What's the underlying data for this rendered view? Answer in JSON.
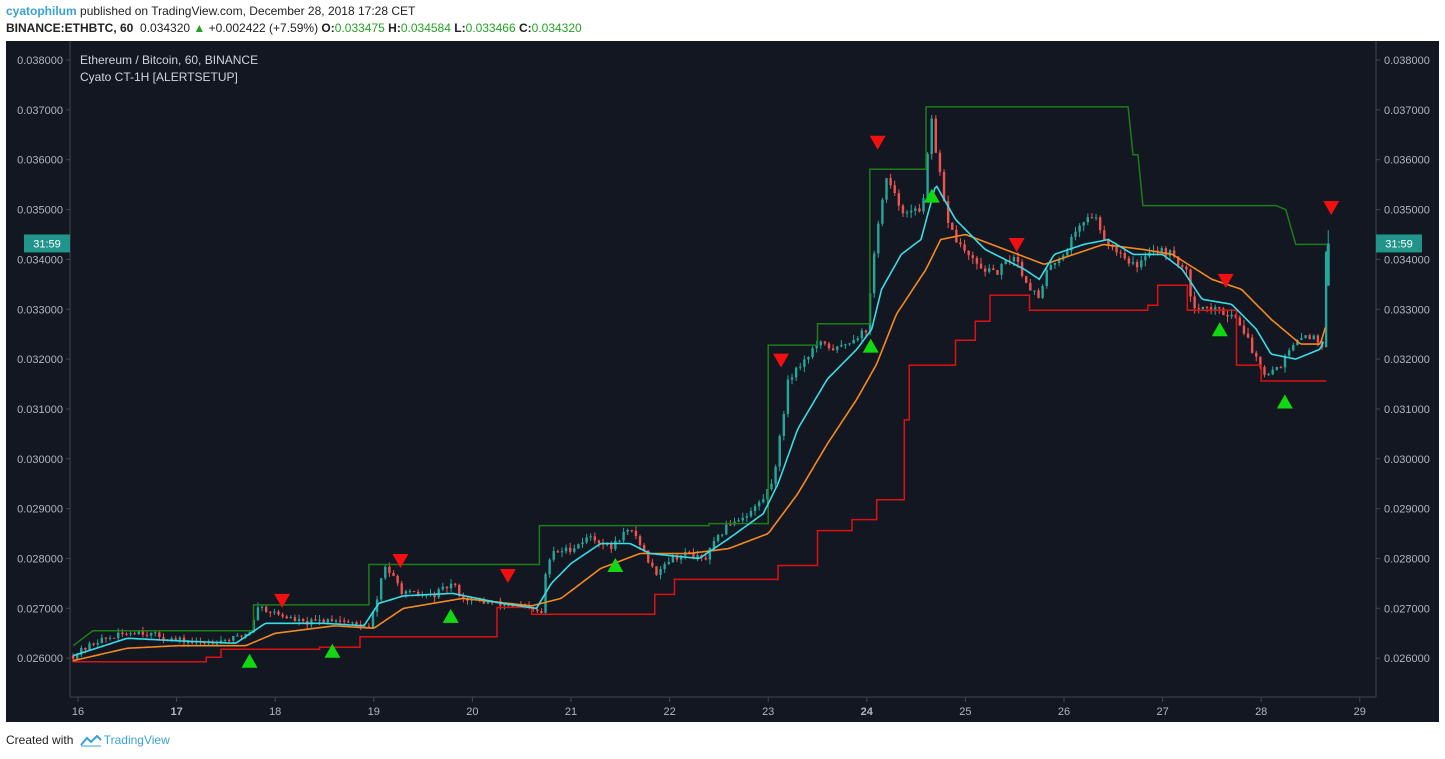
{
  "header": {
    "user": "cyatophilum",
    "published_text": " published on TradingView.com, December 28, 2018 17:28 CET",
    "symbol": "BINANCE:ETHBTC, 60",
    "last": "0.034320",
    "change": "+0.002422 (+7.59%)",
    "o_label": "O:",
    "o_value": "0.033475",
    "h_label": "H:",
    "h_value": "0.034584",
    "l_label": "L:",
    "l_value": "0.033466",
    "c_label": "C:",
    "c_value": "0.034320"
  },
  "footer": {
    "created_with": "Created with",
    "brand": "TradingView"
  },
  "colors": {
    "background": "#131722",
    "up": "#26a69a",
    "down": "#ef5350",
    "fast_ma": "#39dde6",
    "slow_ma": "#f5891f",
    "resistance": "#1d7d16",
    "support": "#dd1111",
    "buy_marker": "#12d812",
    "sell_marker": "#f01010",
    "badge": "#22958a"
  },
  "chart_data": {
    "type": "candlestick",
    "title": "Ethereum / Bitcoin, 60, BINANCE",
    "subtitle": "Cyato CT-1H [ALERTSETUP]",
    "ylim": [
      0.0254,
      0.0381
    ],
    "y_ticks": [
      "0.038000",
      "0.037000",
      "0.036000",
      "0.035000",
      "0.034000",
      "0.033000",
      "0.032000",
      "0.031000",
      "0.030000",
      "0.029000",
      "0.028000",
      "0.027000",
      "0.026000"
    ],
    "x_ticks": [
      {
        "label": "16",
        "day": 16,
        "bold": false
      },
      {
        "label": "17",
        "day": 17,
        "bold": true
      },
      {
        "label": "18",
        "day": 18,
        "bold": false
      },
      {
        "label": "19",
        "day": 19,
        "bold": false
      },
      {
        "label": "20",
        "day": 20,
        "bold": false
      },
      {
        "label": "21",
        "day": 21,
        "bold": false
      },
      {
        "label": "22",
        "day": 22,
        "bold": false
      },
      {
        "label": "23",
        "day": 23,
        "bold": false
      },
      {
        "label": "24",
        "day": 24,
        "bold": true
      },
      {
        "label": "25",
        "day": 25,
        "bold": false
      },
      {
        "label": "26",
        "day": 26,
        "bold": false
      },
      {
        "label": "27",
        "day": 27,
        "bold": false
      },
      {
        "label": "28",
        "day": 28,
        "bold": false
      },
      {
        "label": "29",
        "day": 29,
        "bold": false
      }
    ],
    "price_badge": {
      "label": "31:59",
      "value": 0.03432
    },
    "price_anchors": [
      [
        15.95,
        0.02605
      ],
      [
        16.2,
        0.02635
      ],
      [
        16.6,
        0.02655
      ],
      [
        16.9,
        0.0264
      ],
      [
        17.2,
        0.0263
      ],
      [
        17.6,
        0.0264
      ],
      [
        17.75,
        0.02655
      ],
      [
        17.82,
        0.02705
      ],
      [
        18.0,
        0.0269
      ],
      [
        18.3,
        0.0267
      ],
      [
        18.6,
        0.0268
      ],
      [
        18.85,
        0.02665
      ],
      [
        18.95,
        0.0266
      ],
      [
        19.05,
        0.0273
      ],
      [
        19.1,
        0.0279
      ],
      [
        19.3,
        0.0273
      ],
      [
        19.6,
        0.02725
      ],
      [
        19.8,
        0.0275
      ],
      [
        19.9,
        0.0272
      ],
      [
        20.2,
        0.0271
      ],
      [
        20.45,
        0.02705
      ],
      [
        20.7,
        0.0269
      ],
      [
        20.72,
        0.0275
      ],
      [
        20.8,
        0.0281
      ],
      [
        21.0,
        0.0282
      ],
      [
        21.2,
        0.02845
      ],
      [
        21.4,
        0.0282
      ],
      [
        21.55,
        0.02855
      ],
      [
        21.65,
        0.0285
      ],
      [
        21.75,
        0.0281
      ],
      [
        21.85,
        0.0277
      ],
      [
        22.0,
        0.028
      ],
      [
        22.2,
        0.0281
      ],
      [
        22.35,
        0.02795
      ],
      [
        22.45,
        0.0283
      ],
      [
        22.6,
        0.0287
      ],
      [
        22.8,
        0.0289
      ],
      [
        22.95,
        0.0292
      ],
      [
        23.05,
        0.0296
      ],
      [
        23.15,
        0.0308
      ],
      [
        23.2,
        0.0316
      ],
      [
        23.5,
        0.0323
      ],
      [
        23.7,
        0.0322
      ],
      [
        23.85,
        0.0324
      ],
      [
        24.0,
        0.0326
      ],
      [
        24.05,
        0.0336
      ],
      [
        24.1,
        0.0346
      ],
      [
        24.2,
        0.0356
      ],
      [
        24.3,
        0.0352
      ],
      [
        24.4,
        0.0349
      ],
      [
        24.55,
        0.035
      ],
      [
        24.6,
        0.0356
      ],
      [
        24.65,
        0.0369
      ],
      [
        24.7,
        0.0361
      ],
      [
        24.75,
        0.0356
      ],
      [
        24.8,
        0.0349
      ],
      [
        24.9,
        0.0344
      ],
      [
        25.1,
        0.0339
      ],
      [
        25.3,
        0.0337
      ],
      [
        25.5,
        0.0341
      ],
      [
        25.6,
        0.0336
      ],
      [
        25.75,
        0.0332
      ],
      [
        25.85,
        0.0339
      ],
      [
        26.0,
        0.0341
      ],
      [
        26.15,
        0.0347
      ],
      [
        26.3,
        0.0349
      ],
      [
        26.45,
        0.0343
      ],
      [
        26.6,
        0.0341
      ],
      [
        26.75,
        0.0338
      ],
      [
        26.85,
        0.0342
      ],
      [
        26.95,
        0.0342
      ],
      [
        27.1,
        0.0341
      ],
      [
        27.25,
        0.0337
      ],
      [
        27.3,
        0.0331
      ],
      [
        27.5,
        0.033
      ],
      [
        27.7,
        0.0329
      ],
      [
        27.8,
        0.0327
      ],
      [
        27.9,
        0.0322
      ],
      [
        28.05,
        0.0317
      ],
      [
        28.2,
        0.0319
      ],
      [
        28.3,
        0.0322
      ],
      [
        28.45,
        0.0325
      ],
      [
        28.55,
        0.0324
      ],
      [
        28.62,
        0.0323
      ],
      [
        28.64,
        0.0332
      ],
      [
        28.66,
        0.0343
      ]
    ],
    "fast_ma_anchors": [
      [
        15.95,
        0.02605
      ],
      [
        16.5,
        0.0264
      ],
      [
        17.0,
        0.02635
      ],
      [
        17.6,
        0.0263
      ],
      [
        17.9,
        0.0267
      ],
      [
        18.5,
        0.0267
      ],
      [
        18.9,
        0.02665
      ],
      [
        19.05,
        0.0271
      ],
      [
        19.3,
        0.02725
      ],
      [
        19.8,
        0.0273
      ],
      [
        20.3,
        0.0271
      ],
      [
        20.65,
        0.027
      ],
      [
        20.8,
        0.0275
      ],
      [
        21.0,
        0.0279
      ],
      [
        21.3,
        0.0283
      ],
      [
        21.6,
        0.0283
      ],
      [
        21.8,
        0.0281
      ],
      [
        22.3,
        0.028
      ],
      [
        22.6,
        0.0284
      ],
      [
        22.95,
        0.0289
      ],
      [
        23.1,
        0.0295
      ],
      [
        23.3,
        0.0306
      ],
      [
        23.6,
        0.0316
      ],
      [
        23.9,
        0.0322
      ],
      [
        24.05,
        0.0326
      ],
      [
        24.15,
        0.0334
      ],
      [
        24.35,
        0.0341
      ],
      [
        24.55,
        0.0344
      ],
      [
        24.7,
        0.0355
      ],
      [
        24.9,
        0.0348
      ],
      [
        25.2,
        0.0342
      ],
      [
        25.6,
        0.0338
      ],
      [
        25.75,
        0.0336
      ],
      [
        25.9,
        0.0341
      ],
      [
        26.2,
        0.0343
      ],
      [
        26.45,
        0.0344
      ],
      [
        26.7,
        0.0341
      ],
      [
        27.0,
        0.0341
      ],
      [
        27.2,
        0.0338
      ],
      [
        27.4,
        0.0332
      ],
      [
        27.7,
        0.0331
      ],
      [
        27.95,
        0.0326
      ],
      [
        28.1,
        0.0321
      ],
      [
        28.35,
        0.032
      ],
      [
        28.6,
        0.0322
      ],
      [
        28.64,
        0.0324
      ]
    ],
    "slow_ma_anchors": [
      [
        15.95,
        0.02595
      ],
      [
        16.5,
        0.0262
      ],
      [
        17.0,
        0.02625
      ],
      [
        17.7,
        0.02625
      ],
      [
        18.0,
        0.0265
      ],
      [
        18.6,
        0.02665
      ],
      [
        19.0,
        0.0266
      ],
      [
        19.3,
        0.027
      ],
      [
        19.9,
        0.0272
      ],
      [
        20.6,
        0.02705
      ],
      [
        20.9,
        0.0272
      ],
      [
        21.3,
        0.0278
      ],
      [
        21.7,
        0.0281
      ],
      [
        22.2,
        0.0281
      ],
      [
        22.6,
        0.0282
      ],
      [
        23.0,
        0.0285
      ],
      [
        23.3,
        0.0293
      ],
      [
        23.6,
        0.0303
      ],
      [
        23.9,
        0.0312
      ],
      [
        24.1,
        0.0319
      ],
      [
        24.3,
        0.0329
      ],
      [
        24.6,
        0.0338
      ],
      [
        24.75,
        0.0344
      ],
      [
        25.0,
        0.0345
      ],
      [
        25.4,
        0.0342
      ],
      [
        25.8,
        0.0339
      ],
      [
        26.1,
        0.0341
      ],
      [
        26.4,
        0.0343
      ],
      [
        26.8,
        0.0342
      ],
      [
        27.1,
        0.0341
      ],
      [
        27.5,
        0.0336
      ],
      [
        27.8,
        0.0334
      ],
      [
        28.1,
        0.0328
      ],
      [
        28.4,
        0.0323
      ],
      [
        28.6,
        0.0323
      ],
      [
        28.66,
        0.0327
      ]
    ],
    "resistance_line": [
      [
        15.95,
        0.02625
      ],
      [
        16.15,
        0.02655
      ],
      [
        17.78,
        0.02655
      ],
      [
        17.78,
        0.02707
      ],
      [
        18.95,
        0.02707
      ],
      [
        18.95,
        0.02788
      ],
      [
        20.68,
        0.02788
      ],
      [
        20.68,
        0.02866
      ],
      [
        22.4,
        0.02866
      ],
      [
        22.4,
        0.0287
      ],
      [
        23.0,
        0.0287
      ],
      [
        23.0,
        0.03228
      ],
      [
        23.5,
        0.03228
      ],
      [
        23.5,
        0.03271
      ],
      [
        24.03,
        0.03271
      ],
      [
        24.03,
        0.03581
      ],
      [
        24.6,
        0.03581
      ],
      [
        24.6,
        0.03706
      ],
      [
        26.65,
        0.03706
      ],
      [
        26.7,
        0.0361
      ],
      [
        26.75,
        0.0361
      ],
      [
        26.8,
        0.03508
      ],
      [
        28.15,
        0.03508
      ],
      [
        28.25,
        0.035
      ],
      [
        28.35,
        0.0343
      ],
      [
        28.66,
        0.0343
      ]
    ],
    "support_line": [
      [
        15.95,
        0.02593
      ],
      [
        17.3,
        0.02593
      ],
      [
        17.3,
        0.02602
      ],
      [
        17.45,
        0.02602
      ],
      [
        17.45,
        0.02618
      ],
      [
        18.45,
        0.02618
      ],
      [
        18.45,
        0.02622
      ],
      [
        18.86,
        0.02622
      ],
      [
        18.86,
        0.02643
      ],
      [
        20.25,
        0.02643
      ],
      [
        20.25,
        0.02659
      ],
      [
        20.25,
        0.02702
      ],
      [
        20.6,
        0.02702
      ],
      [
        20.6,
        0.02688
      ],
      [
        21.85,
        0.02688
      ],
      [
        21.85,
        0.02728
      ],
      [
        22.05,
        0.02728
      ],
      [
        22.05,
        0.02758
      ],
      [
        23.1,
        0.02758
      ],
      [
        23.1,
        0.02786
      ],
      [
        23.5,
        0.02786
      ],
      [
        23.5,
        0.02856
      ],
      [
        23.85,
        0.02856
      ],
      [
        23.85,
        0.02878
      ],
      [
        24.1,
        0.02878
      ],
      [
        24.1,
        0.02918
      ],
      [
        24.38,
        0.02918
      ],
      [
        24.38,
        0.03078
      ],
      [
        24.43,
        0.03078
      ],
      [
        24.43,
        0.03188
      ],
      [
        24.9,
        0.03188
      ],
      [
        24.9,
        0.03238
      ],
      [
        25.1,
        0.03238
      ],
      [
        25.1,
        0.03276
      ],
      [
        25.25,
        0.03276
      ],
      [
        25.25,
        0.03328
      ],
      [
        25.65,
        0.03328
      ],
      [
        25.65,
        0.03298
      ],
      [
        26.85,
        0.03298
      ],
      [
        26.85,
        0.03308
      ],
      [
        26.95,
        0.03308
      ],
      [
        26.95,
        0.03348
      ],
      [
        27.25,
        0.03348
      ],
      [
        27.25,
        0.03298
      ],
      [
        27.75,
        0.03298
      ],
      [
        27.75,
        0.03188
      ],
      [
        28.0,
        0.03188
      ],
      [
        28.0,
        0.03156
      ],
      [
        28.66,
        0.03156
      ]
    ],
    "signals": [
      {
        "type": "buy",
        "day": 17.74,
        "price": 0.02595
      },
      {
        "type": "buy",
        "day": 18.58,
        "price": 0.02615
      },
      {
        "type": "buy",
        "day": 19.78,
        "price": 0.02685
      },
      {
        "type": "buy",
        "day": 21.45,
        "price": 0.02787
      },
      {
        "type": "buy",
        "day": 24.04,
        "price": 0.03227
      },
      {
        "type": "buy",
        "day": 24.66,
        "price": 0.03528
      },
      {
        "type": "buy",
        "day": 27.58,
        "price": 0.0326
      },
      {
        "type": "buy",
        "day": 28.24,
        "price": 0.03115
      },
      {
        "type": "sell",
        "day": 18.07,
        "price": 0.02715
      },
      {
        "type": "sell",
        "day": 19.27,
        "price": 0.02795
      },
      {
        "type": "sell",
        "day": 20.36,
        "price": 0.02765
      },
      {
        "type": "sell",
        "day": 23.13,
        "price": 0.03197
      },
      {
        "type": "sell",
        "day": 24.11,
        "price": 0.03634
      },
      {
        "type": "sell",
        "day": 25.52,
        "price": 0.03429
      },
      {
        "type": "sell",
        "day": 27.64,
        "price": 0.03357
      },
      {
        "type": "sell",
        "day": 28.71,
        "price": 0.03503
      }
    ]
  }
}
